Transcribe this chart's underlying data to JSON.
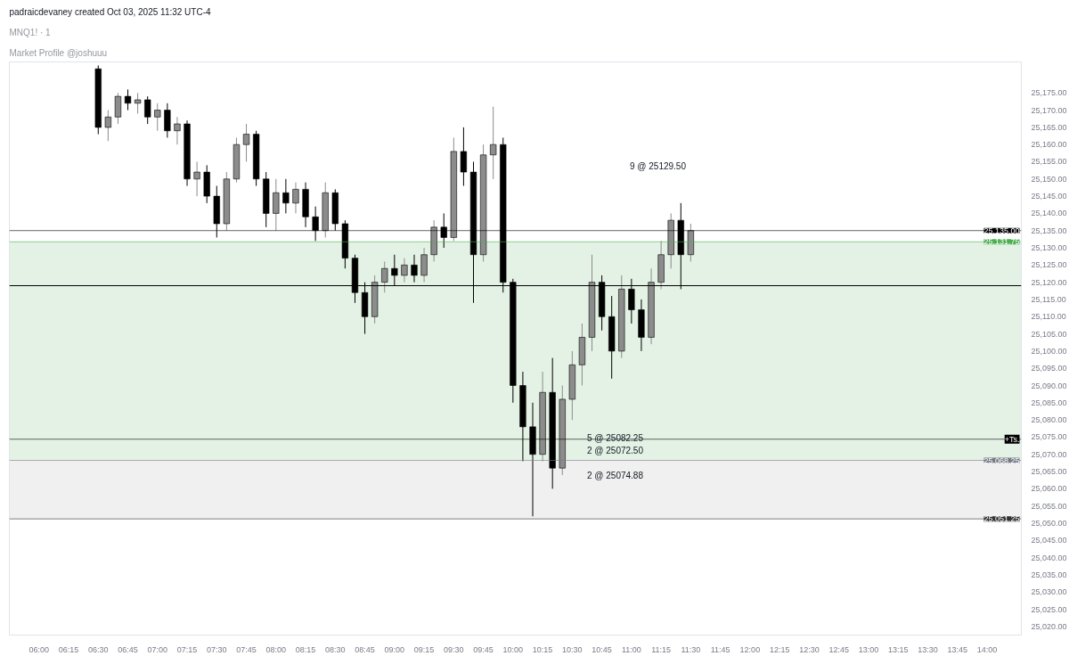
{
  "chart_data": {
    "type": "candlestick",
    "title": "MNQ1! · 1",
    "subtitle": "Market Profile @joshuuu",
    "annotations": [
      "padraicdevaney created Oct 03, 2025 11:32 UTC-4",
      "9 @ 25129.50",
      "5 @ 25082.25",
      "2 @ 25072.50",
      "2 @ 25074.88"
    ],
    "x": [
      6.5,
      6.5833,
      6.6667,
      6.75,
      6.8333,
      6.9167,
      7.0,
      7.0833,
      7.1667,
      7.25,
      7.3333,
      7.4167,
      7.5,
      7.5833,
      7.6667,
      7.75,
      7.8333,
      7.9167,
      8.0,
      8.0833,
      8.1667,
      8.25,
      8.3333,
      8.4167,
      8.5,
      8.5833,
      8.6667,
      8.75,
      8.8333,
      8.9167,
      9.0,
      9.0833,
      9.1667,
      9.25,
      9.3333,
      9.4167,
      9.5,
      9.5833,
      9.6667,
      9.75,
      9.8333,
      9.9167,
      10.0,
      10.0833,
      10.1667,
      10.25,
      10.3333,
      10.4167,
      10.5,
      10.5833,
      10.6667,
      10.75,
      10.8333,
      10.9167,
      11.0,
      11.0833,
      11.1667,
      11.25,
      11.3333,
      11.4167,
      11.5
    ],
    "ohlc": [
      [
        25182,
        25183,
        25163,
        25165
      ],
      [
        25165,
        25170,
        25161,
        25168
      ],
      [
        25168,
        25175,
        25166,
        25174
      ],
      [
        25174,
        25176,
        25170,
        25172
      ],
      [
        25172,
        25175,
        25169,
        25173
      ],
      [
        25173,
        25174,
        25166,
        25168
      ],
      [
        25168,
        25172,
        25164,
        25170
      ],
      [
        25170,
        25172,
        25162,
        25164
      ],
      [
        25164,
        25168,
        25160,
        25166
      ],
      [
        25166,
        25167,
        25148,
        25150
      ],
      [
        25150,
        25155,
        25145,
        25152
      ],
      [
        25152,
        25154,
        25143,
        25145
      ],
      [
        25145,
        25148,
        25133,
        25137
      ],
      [
        25137,
        25152,
        25135,
        25150
      ],
      [
        25150,
        25162,
        25149,
        25160
      ],
      [
        25160,
        25166,
        25155,
        25163
      ],
      [
        25163,
        25164,
        25148,
        25150
      ],
      [
        25150,
        25152,
        25136,
        25140
      ],
      [
        25140,
        25150,
        25135,
        25146
      ],
      [
        25146,
        25150,
        25140,
        25143
      ],
      [
        25143,
        25149,
        25140,
        25147
      ],
      [
        25147,
        25149,
        25136,
        25139
      ],
      [
        25139,
        25142,
        25132,
        25135
      ],
      [
        25135,
        25149,
        25133,
        25146
      ],
      [
        25146,
        25147,
        25135,
        25137
      ],
      [
        25137,
        25138,
        25124,
        25127
      ],
      [
        25127,
        25128,
        25114,
        25117
      ],
      [
        25117,
        25120,
        25105,
        25110
      ],
      [
        25110,
        25122,
        25108,
        25120
      ],
      [
        25120,
        25126,
        25117,
        25124
      ],
      [
        25124,
        25128,
        25119,
        25122
      ],
      [
        25122,
        25127,
        25120,
        25125
      ],
      [
        25125,
        25128,
        25120,
        25122
      ],
      [
        25122,
        25130,
        25120,
        25128
      ],
      [
        25128,
        25138,
        25126,
        25136
      ],
      [
        25136,
        25140,
        25130,
        25133
      ],
      [
        25133,
        25162,
        25132,
        25158
      ],
      [
        25158,
        25165,
        25148,
        25152
      ],
      [
        25152,
        25155,
        25114,
        25128
      ],
      [
        25128,
        25160,
        25126,
        25157
      ],
      [
        25157,
        25171,
        25150,
        25160
      ],
      [
        25160,
        25162,
        25117,
        25120
      ],
      [
        25120,
        25121,
        25085,
        25090
      ],
      [
        25090,
        25094,
        25068,
        25078
      ],
      [
        25078,
        25085,
        25052,
        25070
      ],
      [
        25070,
        25094,
        25068,
        25088
      ],
      [
        25088,
        25098,
        25060,
        25066
      ],
      [
        25066,
        25090,
        25064,
        25086
      ],
      [
        25086,
        25100,
        25080,
        25096
      ],
      [
        25096,
        25108,
        25090,
        25104
      ],
      [
        25104,
        25128,
        25100,
        25120
      ],
      [
        25120,
        25122,
        25106,
        25110
      ],
      [
        25110,
        25116,
        25092,
        25100
      ],
      [
        25100,
        25122,
        25098,
        25118
      ],
      [
        25118,
        25121,
        25108,
        25112
      ],
      [
        25112,
        25115,
        25100,
        25104
      ],
      [
        25104,
        25124,
        25102,
        25120
      ],
      [
        25120,
        25132,
        25118,
        25128
      ],
      [
        25128,
        25140,
        25124,
        25138
      ],
      [
        25138,
        25143,
        25118,
        25128
      ],
      [
        25128,
        25137,
        25126,
        25135
      ]
    ],
    "colors": [
      "#000000",
      "#8c8c8c",
      "#8c8c8c",
      "#000000",
      "#8c8c8c",
      "#000000",
      "#8c8c8c",
      "#000000",
      "#8c8c8c",
      "#000000",
      "#8c8c8c",
      "#000000",
      "#000000",
      "#8c8c8c",
      "#8c8c8c",
      "#8c8c8c",
      "#000000",
      "#000000",
      "#8c8c8c",
      "#000000",
      "#8c8c8c",
      "#000000",
      "#000000",
      "#8c8c8c",
      "#000000",
      "#000000",
      "#000000",
      "#000000",
      "#8c8c8c",
      "#8c8c8c",
      "#000000",
      "#8c8c8c",
      "#000000",
      "#8c8c8c",
      "#8c8c8c",
      "#000000",
      "#8c8c8c",
      "#000000",
      "#000000",
      "#8c8c8c",
      "#8c8c8c",
      "#000000",
      "#000000",
      "#000000",
      "#000000",
      "#8c8c8c",
      "#000000",
      "#8c8c8c",
      "#8c8c8c",
      "#8c8c8c",
      "#8c8c8c",
      "#000000",
      "#000000",
      "#8c8c8c",
      "#000000",
      "#000000",
      "#8c8c8c",
      "#8c8c8c",
      "#8c8c8c",
      "#000000",
      "#8c8c8c"
    ],
    "xlim": [
      5.75,
      14.29
    ],
    "xticks": [
      {
        "value": 6.0,
        "label": "06:00"
      },
      {
        "value": 6.25,
        "label": "06:15"
      },
      {
        "value": 6.5,
        "label": "06:30"
      },
      {
        "value": 6.75,
        "label": "06:45"
      },
      {
        "value": 7.0,
        "label": "07:00"
      },
      {
        "value": 7.25,
        "label": "07:15"
      },
      {
        "value": 7.5,
        "label": "07:30"
      },
      {
        "value": 7.75,
        "label": "07:45"
      },
      {
        "value": 8.0,
        "label": "08:00"
      },
      {
        "value": 8.25,
        "label": "08:15"
      },
      {
        "value": 8.5,
        "label": "08:30"
      },
      {
        "value": 8.75,
        "label": "08:45"
      },
      {
        "value": 9.0,
        "label": "09:00"
      },
      {
        "value": 9.25,
        "label": "09:15"
      },
      {
        "value": 9.5,
        "label": "09:30"
      },
      {
        "value": 9.75,
        "label": "09:45"
      },
      {
        "value": 10.0,
        "label": "10:00"
      },
      {
        "value": 10.25,
        "label": "10:15"
      },
      {
        "value": 10.5,
        "label": "10:30"
      },
      {
        "value": 10.75,
        "label": "10:45"
      },
      {
        "value": 11.0,
        "label": "11:00"
      },
      {
        "value": 11.25,
        "label": "11:15"
      },
      {
        "value": 11.5,
        "label": "11:30"
      },
      {
        "value": 11.75,
        "label": "11:45"
      },
      {
        "value": 12.0,
        "label": "12:00"
      },
      {
        "value": 12.25,
        "label": "12:15"
      },
      {
        "value": 12.5,
        "label": "12:30"
      },
      {
        "value": 12.75,
        "label": "12:45"
      },
      {
        "value": 13.0,
        "label": "13:00"
      },
      {
        "value": 13.25,
        "label": "13:15"
      },
      {
        "value": 13.5,
        "label": "13:30"
      },
      {
        "value": 13.75,
        "label": "13:45"
      },
      {
        "value": 14.0,
        "label": "14:00"
      }
    ],
    "ylim": [
      25017.5,
      25184
    ],
    "yticks": [
      {
        "value": 25020,
        "label": "25,020.00"
      },
      {
        "value": 25025,
        "label": "25,025.00"
      },
      {
        "value": 25030,
        "label": "25,030.00"
      },
      {
        "value": 25035,
        "label": "25,035.00"
      },
      {
        "value": 25040,
        "label": "25,040.00"
      },
      {
        "value": 25045,
        "label": "25,045.00"
      },
      {
        "value": 25050,
        "label": "25,050.00"
      },
      {
        "value": 25055,
        "label": "25,055.00"
      },
      {
        "value": 25060,
        "label": "25,060.00"
      },
      {
        "value": 25065,
        "label": "25,065.00"
      },
      {
        "value": 25070,
        "label": "25,070.00"
      },
      {
        "value": 25075,
        "label": "25,075.00"
      },
      {
        "value": 25080,
        "label": "25,080.00"
      },
      {
        "value": 25085,
        "label": "25,085.00"
      },
      {
        "value": 25090,
        "label": "25,090.00"
      },
      {
        "value": 25095,
        "label": "25,095.00"
      },
      {
        "value": 25100,
        "label": "25,100.00"
      },
      {
        "value": 25105,
        "label": "25,105.00"
      },
      {
        "value": 25110,
        "label": "25,110.00"
      },
      {
        "value": 25115,
        "label": "25,115.00"
      },
      {
        "value": 25120,
        "label": "25,120.00"
      },
      {
        "value": 25125,
        "label": "25,125.00"
      },
      {
        "value": 25130,
        "label": "25,130.00"
      },
      {
        "value": 25135,
        "label": "25,135.00"
      },
      {
        "value": 25140,
        "label": "25,140.00"
      },
      {
        "value": 25145,
        "label": "25,145.00"
      },
      {
        "value": 25150,
        "label": "25,150.00"
      },
      {
        "value": 25155,
        "label": "25,155.00"
      },
      {
        "value": 25160,
        "label": "25,160.00"
      },
      {
        "value": 25165,
        "label": "25,165.00"
      },
      {
        "value": 25170,
        "label": "25,170.00"
      },
      {
        "value": 25175,
        "label": "25,175.00"
      }
    ],
    "bands": [
      {
        "axis": "y",
        "from": 25068.25,
        "to": 25131.75,
        "label": null,
        "color": "#e3f2e5"
      },
      {
        "axis": "y",
        "from": 25051.25,
        "to": 25068.25,
        "label": null,
        "color": "#f0f0f0"
      }
    ],
    "ref_lines": [
      {
        "axis": "y",
        "value": 25135,
        "label": "25,135.00",
        "color": "#000000"
      },
      {
        "axis": "y",
        "value": 25131.75,
        "label": "25,131.75",
        "color": "#4caf50"
      },
      {
        "axis": "y",
        "value": 25068.25,
        "label": "25,068.25",
        "color": "#787b86"
      },
      {
        "axis": "y",
        "value": 25051.25,
        "label": "25,051.25",
        "color": "#333333"
      },
      {
        "axis": "y",
        "value": 25074.4,
        "label": "+Ts.",
        "color": "#000000"
      },
      {
        "axis": "y",
        "value": 25119,
        "label": null,
        "color": "#000000",
        "line_style": "solid"
      }
    ],
    "grid": false
  }
}
